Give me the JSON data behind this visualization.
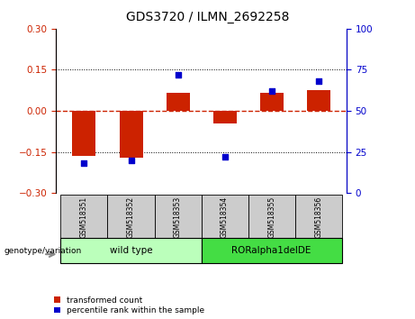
{
  "title": "GDS3720 / ILMN_2692258",
  "samples": [
    "GSM518351",
    "GSM518352",
    "GSM518353",
    "GSM518354",
    "GSM518355",
    "GSM518356"
  ],
  "bar_values": [
    -0.165,
    -0.17,
    0.065,
    -0.045,
    0.065,
    0.075
  ],
  "scatter_values": [
    18,
    20,
    72,
    22,
    62,
    68
  ],
  "ylim_left": [
    -0.3,
    0.3
  ],
  "ylim_right": [
    0,
    100
  ],
  "yticks_left": [
    -0.3,
    -0.15,
    0.0,
    0.15,
    0.3
  ],
  "yticks_right": [
    0,
    25,
    50,
    75,
    100
  ],
  "bar_color": "#cc2200",
  "scatter_color": "#0000cc",
  "hline_color": "#cc2200",
  "grid_color": "black",
  "group1_label": "wild type",
  "group2_label": "RORalpha1delDE",
  "group1_color": "#bbffbb",
  "group2_color": "#44dd44",
  "genotype_label": "genotype/variation",
  "legend_bar_label": "transformed count",
  "legend_scatter_label": "percentile rank within the sample",
  "tick_bg_color": "#cccccc",
  "background_color": "#ffffff"
}
